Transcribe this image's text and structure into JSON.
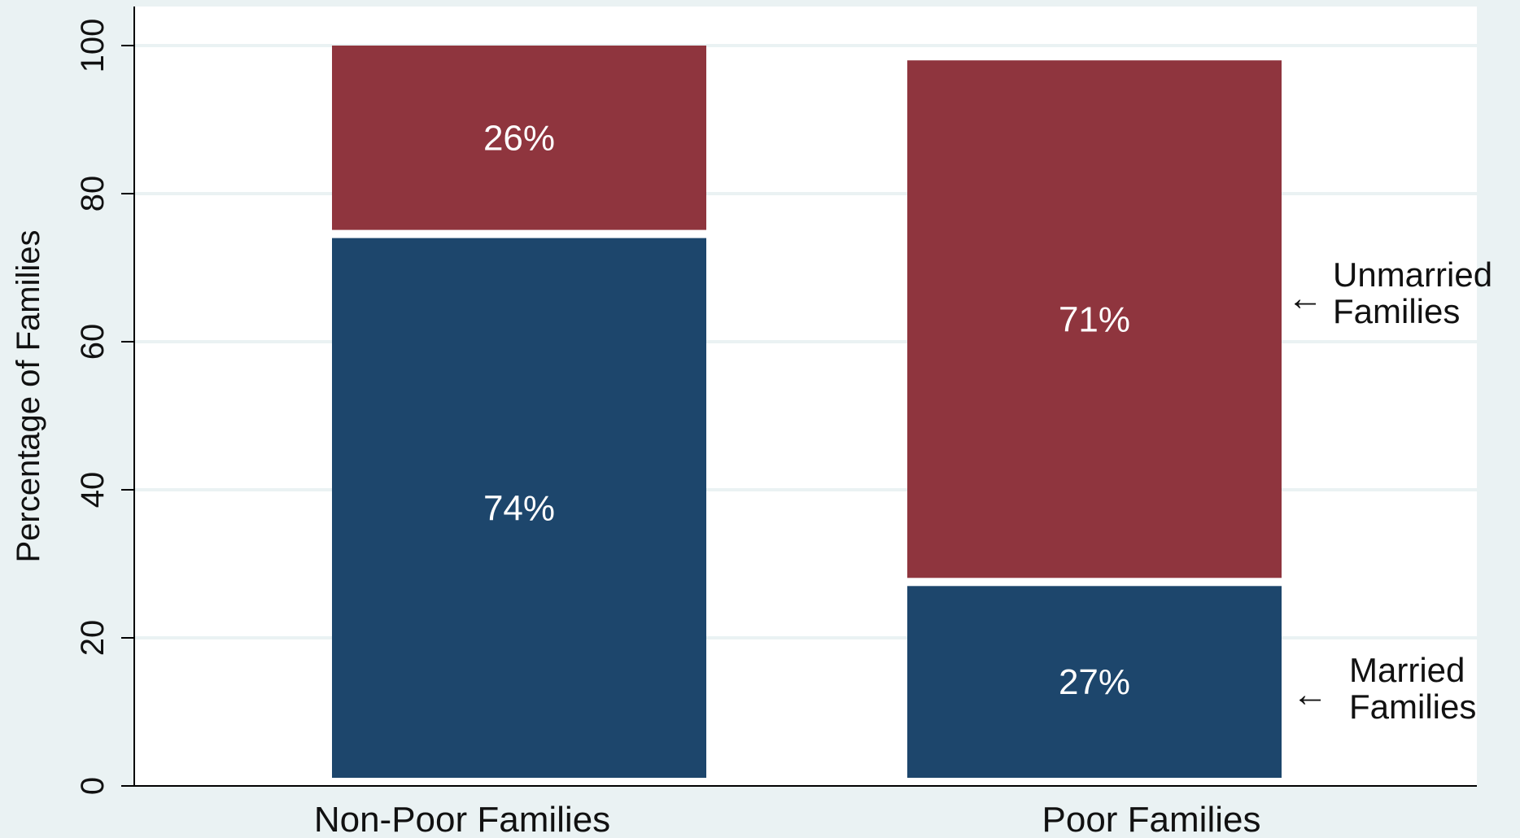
{
  "chart_data": {
    "type": "bar",
    "stacked": true,
    "categories": [
      "Non-Poor Families",
      "Poor Families"
    ],
    "series": [
      {
        "name": "Married Families",
        "values": [
          74,
          27
        ],
        "color": "#1d466c"
      },
      {
        "name": "Unmarried Families",
        "values": [
          26,
          71
        ],
        "color": "#8f353e"
      }
    ],
    "data_labels": [
      [
        "74%",
        "27%"
      ],
      [
        "26%",
        "71%"
      ]
    ],
    "ylabel": "Percentage of Families",
    "xlabel": "",
    "ylim": [
      0,
      105
    ],
    "yticks": [
      0,
      20,
      40,
      60,
      80,
      100
    ],
    "grid": true,
    "annotations": [
      {
        "arrow": "←",
        "lines": [
          "Unmarried",
          "Families"
        ]
      },
      {
        "arrow": "←",
        "lines": [
          "Married",
          "Families"
        ]
      }
    ],
    "colors": {
      "background": "#eaf2f3",
      "plot_area": "#ffffff",
      "grid": "#eaf2f3",
      "axis": "#000000"
    }
  }
}
